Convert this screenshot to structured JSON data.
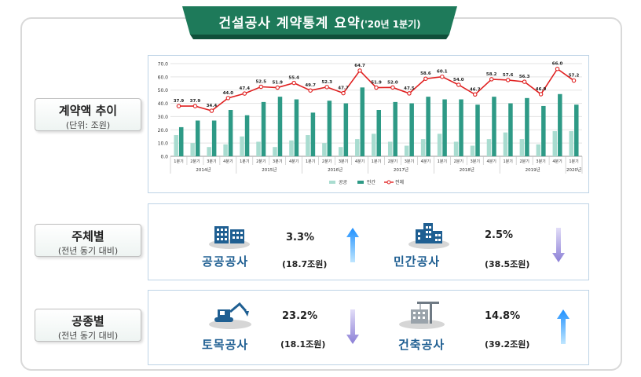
{
  "title": {
    "main": "건설공사 계약통계 요약",
    "sub": "('20년 1분기)"
  },
  "sections": {
    "trend": {
      "title": "계약액 추이",
      "subtitle": "(단위: 조원)"
    },
    "entity": {
      "title": "주체별",
      "subtitle": "(전년 동기 대비)"
    },
    "work": {
      "title": "공종별",
      "subtitle": "(전년 동기 대비)"
    }
  },
  "entity_items": [
    {
      "name": "공공공사",
      "change": "3.3%",
      "amount": "(18.7조원)",
      "direction": "up",
      "icon": "office-building-icon"
    },
    {
      "name": "민간공사",
      "change": "2.5%",
      "amount": "(38.5조원)",
      "direction": "down",
      "icon": "apartment-building-icon"
    }
  ],
  "work_items": [
    {
      "name": "토목공사",
      "change": "23.2%",
      "amount": "(18.1조원)",
      "direction": "down",
      "icon": "excavator-icon"
    },
    {
      "name": "건축공사",
      "change": "14.8%",
      "amount": "(39.2조원)",
      "direction": "up",
      "icon": "crane-building-icon"
    }
  ],
  "colors": {
    "banner": "#1e7a5a",
    "public": "#a9dcd0",
    "private": "#2e9a86",
    "total": "#e02020",
    "up_arrow": "#1e90ff",
    "down_arrow": "#8b7fd6",
    "category_text": "#1f5f92"
  },
  "chart_data": {
    "type": "bar",
    "categories": [
      "1분기",
      "2분기",
      "3분기",
      "4분기",
      "1분기",
      "2분기",
      "3분기",
      "4분기",
      "1분기",
      "2분기",
      "3분기",
      "4분기",
      "1분기",
      "2분기",
      "3분기",
      "4분기",
      "1분기",
      "2분기",
      "3분기",
      "4분기",
      "1분기",
      "2분기",
      "3분기",
      "4분기",
      "1분기"
    ],
    "year_labels": [
      "2014년",
      "2015년",
      "2016년",
      "2017년",
      "2018년",
      "2019년",
      "2020년"
    ],
    "series": [
      {
        "name": "공공",
        "type": "bar",
        "values": [
          16,
          10,
          7,
          9,
          15,
          11,
          7,
          12,
          16,
          10,
          7,
          13,
          17,
          11,
          8,
          13,
          17,
          11,
          8,
          13,
          18,
          13,
          9,
          19,
          19
        ]
      },
      {
        "name": "민간",
        "type": "bar",
        "values": [
          22,
          27,
          27,
          35,
          31,
          41,
          45,
          43,
          33,
          42,
          40,
          52,
          35,
          41,
          40,
          45,
          43,
          43,
          39,
          45,
          40,
          44,
          38,
          47,
          39
        ]
      },
      {
        "name": "전체",
        "type": "line",
        "values": [
          37.9,
          37.9,
          34.4,
          44.0,
          47.4,
          52.5,
          51.9,
          55.4,
          49.7,
          52.3,
          47.7,
          64.7,
          51.9,
          52.0,
          47.5,
          58.6,
          60.1,
          54.0,
          46.7,
          58.2,
          57.6,
          56.3,
          46.9,
          66.0,
          57.2
        ]
      }
    ],
    "data_labels": [
      "37.9",
      "37.9",
      "34.4",
      "44.0",
      "47.4",
      "52.5",
      "51.9",
      "55.4",
      "49.7",
      "52.3",
      "47.7",
      "64.7",
      "51.9",
      "52.0",
      "47.5",
      "58.6",
      "60.1",
      "54.0",
      "46.7",
      "58.2",
      "57.6",
      "56.3",
      "46.9",
      "66.0",
      "57.2"
    ],
    "y_ticks": [
      "0.0",
      "10.0",
      "20.0",
      "30.0",
      "40.0",
      "50.0",
      "60.0",
      "70.0"
    ],
    "ylim": [
      0,
      70
    ],
    "grid": true,
    "legend": "bottom"
  }
}
